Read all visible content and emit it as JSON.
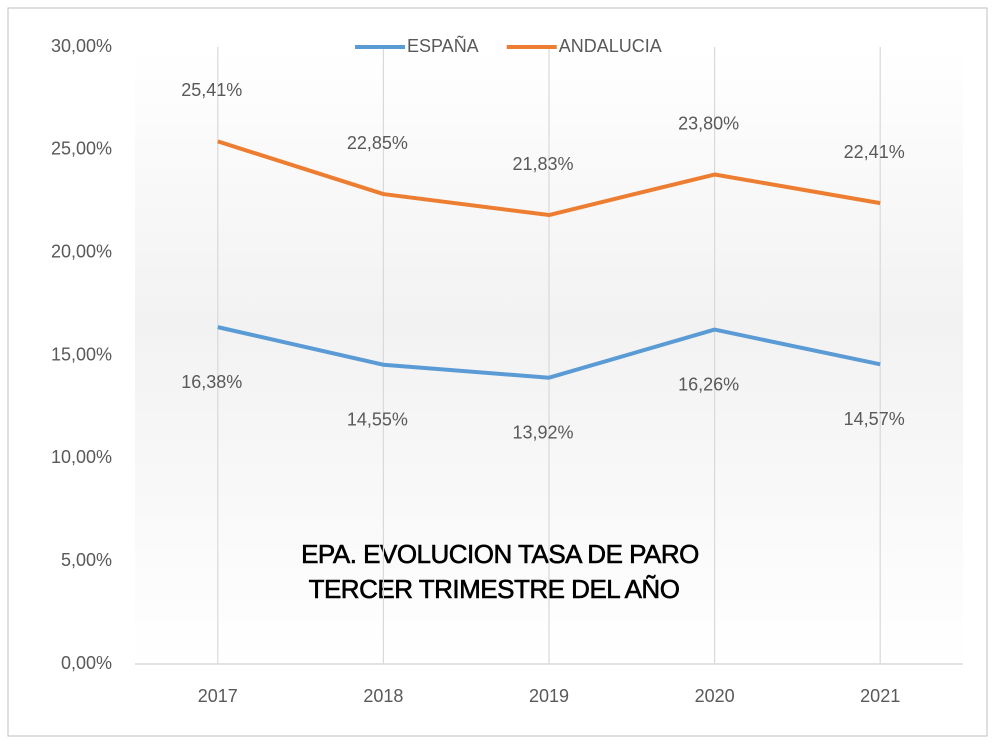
{
  "chart_data": {
    "type": "line",
    "title": [
      "EPA. EVOLUCION TASA DE PARO",
      "TERCER TRIMESTRE DEL AÑO"
    ],
    "categories": [
      "2017",
      "2018",
      "2019",
      "2020",
      "2021"
    ],
    "series": [
      {
        "name": "ESPAÑA",
        "color": "#5b9bd5",
        "values": [
          16.38,
          14.55,
          13.92,
          16.26,
          14.57
        ],
        "value_labels": [
          "16,38%",
          "14,55%",
          "13,92%",
          "16,26%",
          "14,57%"
        ],
        "label_position": "below"
      },
      {
        "name": "ANDALUCIA",
        "color": "#ed7d31",
        "values": [
          25.41,
          22.85,
          21.83,
          23.8,
          22.41
        ],
        "value_labels": [
          "25,41%",
          "22,85%",
          "21,83%",
          "23,80%",
          "22,41%"
        ],
        "label_position": "above"
      }
    ],
    "ylim": [
      0,
      30
    ],
    "yticks": [
      {
        "value": 0,
        "label": "0,00%"
      },
      {
        "value": 5,
        "label": "5,00%"
      },
      {
        "value": 10,
        "label": "10,00%"
      },
      {
        "value": 15,
        "label": "15,00%"
      },
      {
        "value": 20,
        "label": "20,00%"
      },
      {
        "value": 25,
        "label": "25,00%"
      },
      {
        "value": 30,
        "label": "30,00%"
      }
    ],
    "vertical_lines": true,
    "legend": "top"
  }
}
